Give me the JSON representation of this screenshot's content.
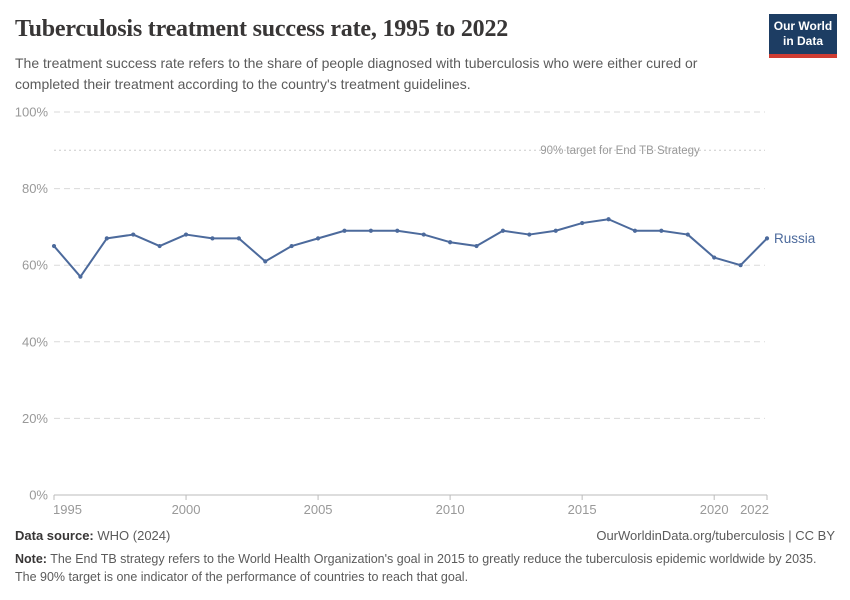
{
  "header": {
    "title": "Tuberculosis treatment success rate, 1995 to 2022",
    "subtitle": "The treatment success rate refers to the share of people diagnosed with tuberculosis who were either cured or completed their treatment according to the country's treatment guidelines.",
    "logo": {
      "line1": "Our World",
      "line2": "in Data"
    }
  },
  "footer": {
    "datasource_label": "Data source:",
    "datasource_value": "WHO (2024)",
    "attribution": "OurWorldinData.org/tuberculosis | CC BY",
    "note_label": "Note:",
    "note_text": "The End TB strategy refers to the World Health Organization's goal in 2015 to greatly reduce the tuberculosis epidemic worldwide by 2035. The 90% target is one indicator of the performance of countries to reach that goal."
  },
  "colors": {
    "logo_bg": "#1d3d63",
    "logo_accent": "#cf3c32",
    "line": "#4c6a9c",
    "grid": "#dadada",
    "axis": "#bbbbbb",
    "target_line": "#cccccc",
    "tick_label": "#999999"
  },
  "chart_data": {
    "type": "line",
    "title": "Tuberculosis treatment success rate, 1995 to 2022",
    "xlabel": "",
    "ylabel": "",
    "ylim": [
      0,
      100
    ],
    "yticks": [
      0,
      20,
      40,
      60,
      80,
      100
    ],
    "ytick_suffix": "%",
    "xticks": [
      1995,
      2000,
      2005,
      2010,
      2015,
      2020,
      2022
    ],
    "grid": true,
    "legend_position": "right-inline",
    "target_line": {
      "value": 90,
      "label": "90% target for End TB Strategy"
    },
    "x": [
      1995,
      1996,
      1997,
      1998,
      1999,
      2000,
      2001,
      2002,
      2003,
      2004,
      2005,
      2006,
      2007,
      2008,
      2009,
      2010,
      2011,
      2012,
      2013,
      2014,
      2015,
      2016,
      2017,
      2018,
      2019,
      2020,
      2021,
      2022
    ],
    "series": [
      {
        "name": "Russia",
        "color": "#4c6a9c",
        "values": [
          65,
          57,
          67,
          68,
          65,
          68,
          67,
          67,
          61,
          65,
          67,
          69,
          69,
          69,
          68,
          66,
          65,
          69,
          68,
          69,
          71,
          72,
          69,
          69,
          68,
          62,
          60,
          67
        ]
      }
    ]
  }
}
